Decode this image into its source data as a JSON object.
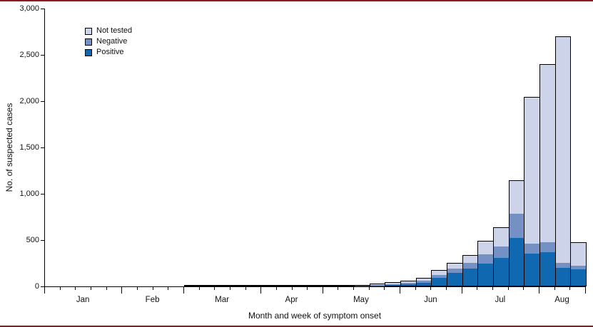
{
  "figure": {
    "accent_rule_color": "#8a1c1c"
  },
  "chart_data": {
    "type": "bar",
    "stacked": true,
    "title": "",
    "xlabel": "Month and week of symptom onset",
    "ylabel": "No. of suspected cases",
    "ylim": [
      0,
      3000
    ],
    "ytick_interval": 500,
    "ytick_labels": [
      "0",
      "500",
      "1,000",
      "1,500",
      "2,000",
      "2,500",
      "3,000"
    ],
    "grid": false,
    "legend_position": "top-left-inside",
    "legend": [
      {
        "label": "Not tested",
        "color": "#cdd4e9"
      },
      {
        "label": "Negative",
        "color": "#7590c2"
      },
      {
        "label": "Positive",
        "color": "#0f68b0"
      }
    ],
    "months": [
      {
        "label": "Jan",
        "weeks": 5
      },
      {
        "label": "Feb",
        "weeks": 4
      },
      {
        "label": "Mar",
        "weeks": 5
      },
      {
        "label": "Apr",
        "weeks": 4
      },
      {
        "label": "May",
        "weeks": 5
      },
      {
        "label": "Jun",
        "weeks": 4
      },
      {
        "label": "Jul",
        "weeks": 5
      },
      {
        "label": "Aug",
        "weeks": 3
      }
    ],
    "x_unit": "week",
    "series": [
      {
        "name": "Positive",
        "color": "#0f68b0",
        "values": [
          0,
          0,
          0,
          0,
          0,
          0,
          0,
          0,
          0,
          2,
          1,
          1,
          1,
          1,
          1,
          0,
          1,
          1,
          2,
          3,
          5,
          8,
          15,
          25,
          40,
          90,
          150,
          190,
          250,
          310,
          520,
          350,
          360,
          190,
          180
        ]
      },
      {
        "name": "Negative",
        "color": "#7590c2",
        "values": [
          0,
          0,
          0,
          0,
          0,
          0,
          0,
          0,
          0,
          3,
          2,
          1,
          1,
          1,
          1,
          1,
          1,
          2,
          2,
          3,
          5,
          8,
          10,
          15,
          20,
          35,
          45,
          70,
          100,
          120,
          270,
          110,
          110,
          60,
          40
        ]
      },
      {
        "name": "Not tested",
        "color": "#cdd4e9",
        "values": [
          0,
          0,
          0,
          0,
          0,
          0,
          0,
          0,
          0,
          7,
          3,
          2,
          1,
          1,
          1,
          1,
          1,
          2,
          4,
          6,
          8,
          12,
          20,
          25,
          35,
          50,
          60,
          75,
          140,
          210,
          360,
          1590,
          1930,
          2450,
          260
        ]
      }
    ],
    "weekly_totals": [
      0,
      0,
      0,
      0,
      0,
      0,
      0,
      0,
      0,
      12,
      6,
      4,
      3,
      3,
      3,
      2,
      3,
      5,
      8,
      12,
      18,
      28,
      45,
      65,
      95,
      175,
      255,
      335,
      490,
      640,
      1150,
      2050,
      2400,
      2700,
      480
    ]
  }
}
